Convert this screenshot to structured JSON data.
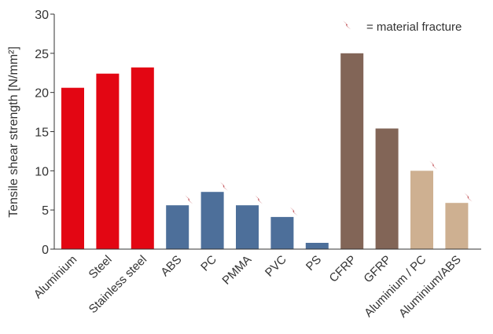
{
  "chart_data": {
    "type": "bar",
    "ylabel": "Tensile shear strength  [N/mm²]",
    "ylim": [
      0,
      30
    ],
    "yticks": [
      0,
      5,
      10,
      15,
      20,
      25,
      30
    ],
    "grid": false,
    "legend": {
      "placement": "top-right",
      "label": "= material fracture",
      "icon": "lightning-bolt-icon",
      "icon_color": "#b3262d"
    },
    "categories": [
      "Aluminium",
      "Steel",
      "Stainless steel",
      "ABS",
      "PC",
      "PMMA",
      "PVC",
      "PS",
      "CFRP",
      "GFRP",
      "Aluminium / PC",
      "Aluminium/ABS"
    ],
    "values": [
      20.6,
      22.4,
      23.2,
      5.6,
      7.3,
      5.6,
      4.1,
      0.8,
      25.0,
      15.4,
      10.0,
      5.9
    ],
    "material_fracture": [
      false,
      false,
      false,
      true,
      true,
      true,
      true,
      false,
      false,
      false,
      true,
      true
    ],
    "bar_colors": [
      "#e30613",
      "#e30613",
      "#e30613",
      "#4d6f9a",
      "#4d6f9a",
      "#4d6f9a",
      "#4d6f9a",
      "#4d6f9a",
      "#826557",
      "#826557",
      "#ceb091",
      "#ceb091"
    ],
    "axis_color": "#333333"
  }
}
